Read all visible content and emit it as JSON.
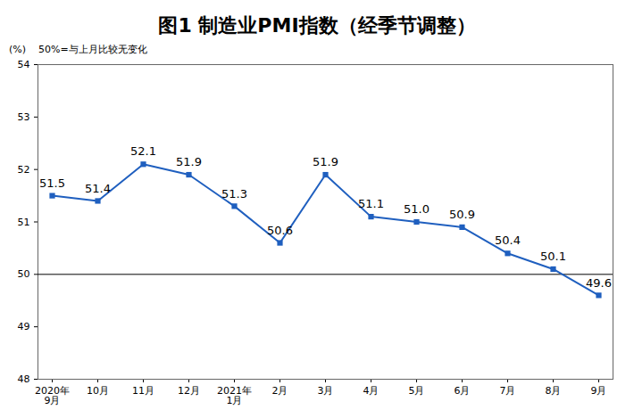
{
  "chart_data": {
    "type": "line",
    "title": "图1 制造业PMI指数（经季节调整）",
    "y_label": "(%)",
    "annotations": [
      "50%=与上月比较无变化"
    ],
    "baseline": 50,
    "categories": [
      "2020年\n9月",
      "10月",
      "11月",
      "12月",
      "2021年\n1月",
      "2月",
      "3月",
      "4月",
      "5月",
      "6月",
      "7月",
      "8月",
      "9月"
    ],
    "values": [
      51.5,
      51.4,
      52.1,
      51.9,
      51.3,
      50.6,
      51.9,
      51.1,
      51.0,
      50.9,
      50.4,
      50.1,
      49.6
    ],
    "value_labels": [
      "51.5",
      "51.4",
      "52.1",
      "51.9",
      "51.3",
      "50.6",
      "51.9",
      "51.1",
      "51.0",
      "50.9",
      "50.4",
      "50.1",
      "49.6"
    ],
    "color": "#1f5fbf",
    "marker": "square",
    "ylim": [
      48,
      54
    ],
    "yticks": [
      48,
      49,
      50,
      51,
      52,
      53,
      54
    ],
    "grid": false,
    "data_labels": true
  }
}
